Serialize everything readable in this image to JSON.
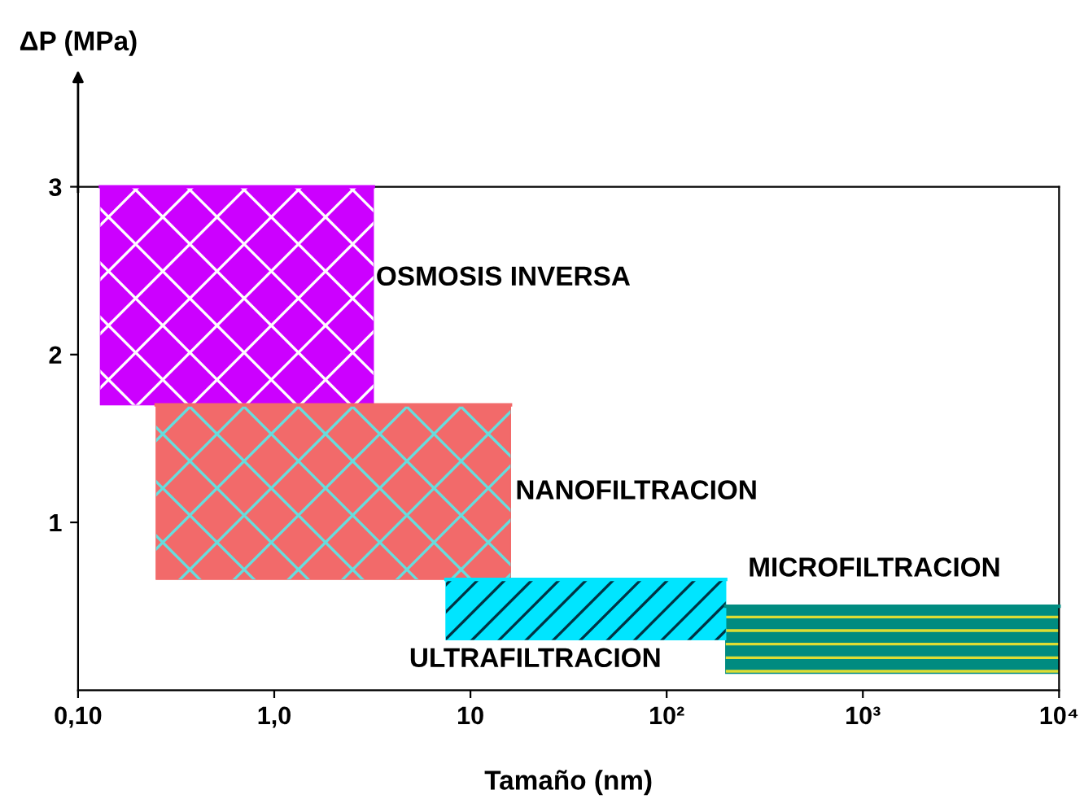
{
  "chart_data": {
    "type": "line",
    "xlabel": "Tamaño (nm)",
    "ylabel": "ΔP (MPa)",
    "log": "x",
    "xlim": [
      0.1,
      10000
    ],
    "xticks": [
      {
        "value": 0.1,
        "label": "0,10"
      },
      {
        "value": 1,
        "label": "1,0"
      },
      {
        "value": 10,
        "label": "10"
      },
      {
        "value": 100,
        "label": "10²"
      },
      {
        "value": 1000,
        "label": "10³"
      },
      {
        "value": 10000,
        "label": "10⁴"
      }
    ],
    "ylim": [
      0,
      3
    ],
    "yticks": [
      1,
      2,
      3
    ],
    "grid": false,
    "series": [
      {
        "name": "OSMOSIS INVERSA",
        "color": "#cc00ff",
        "x": [
          0.13,
          3.2
        ],
        "values": [
          3,
          3
        ],
        "lower": [
          1.7,
          1.7
        ],
        "upper": [
          3,
          3
        ]
      },
      {
        "name": "NANOFILTRACION",
        "color": "#f26a6a",
        "x": [
          0.25,
          16
        ],
        "values": [
          1.7,
          1.7
        ],
        "lower": [
          0.66,
          0.66
        ],
        "upper": [
          1.7,
          1.7
        ]
      },
      {
        "name": "ULTRAFILTRACION",
        "color": "#00e5ff",
        "x": [
          7.5,
          200
        ],
        "values": [
          0.66,
          0.66
        ],
        "lower": [
          0.3,
          0.3
        ],
        "upper": [
          0.66,
          0.66
        ]
      },
      {
        "name": "MICROFILTRACION",
        "color": "#008b80",
        "x": [
          200,
          10000
        ],
        "values": [
          0.5,
          0.5
        ],
        "lower": [
          0.1,
          0.1
        ],
        "upper": [
          0.5,
          0.5
        ]
      }
    ]
  }
}
